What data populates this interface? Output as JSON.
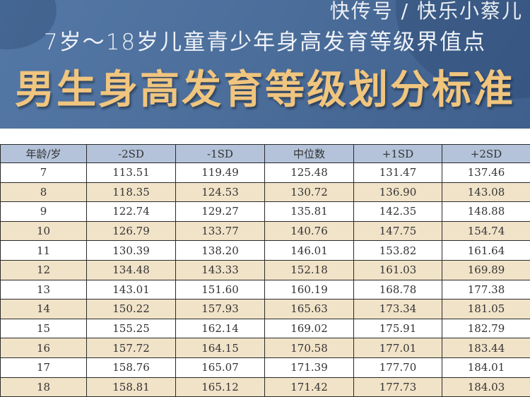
{
  "header": {
    "subtitle": "7岁～18岁儿童青少年身高发育等级界值点",
    "title": "男生身高发育等级划分标准"
  },
  "colors": {
    "banner": "#4b6d9a",
    "title": "#f0c57e",
    "table_header": "#b4c3da",
    "stripe": "#f1e3c8"
  },
  "table": {
    "columns": [
      "年龄/岁",
      "-2SD",
      "-1SD",
      "中位数",
      "+1SD",
      "+2SD"
    ],
    "rows": [
      [
        "7",
        "113.51",
        "119.49",
        "125.48",
        "131.47",
        "137.46"
      ],
      [
        "8",
        "118.35",
        "124.53",
        "130.72",
        "136.90",
        "143.08"
      ],
      [
        "9",
        "122.74",
        "129.27",
        "135.81",
        "142.35",
        "148.88"
      ],
      [
        "10",
        "126.79",
        "133.77",
        "140.76",
        "147.75",
        "154.74"
      ],
      [
        "11",
        "130.39",
        "138.20",
        "146.01",
        "153.82",
        "161.64"
      ],
      [
        "12",
        "134.48",
        "143.33",
        "152.18",
        "161.03",
        "169.89"
      ],
      [
        "13",
        "143.01",
        "151.60",
        "160.19",
        "168.78",
        "177.38"
      ],
      [
        "14",
        "150.22",
        "157.93",
        "165.63",
        "173.34",
        "181.05"
      ],
      [
        "15",
        "155.25",
        "162.14",
        "169.02",
        "175.91",
        "182.79"
      ],
      [
        "16",
        "157.72",
        "164.15",
        "170.58",
        "177.01",
        "183.44"
      ],
      [
        "17",
        "158.76",
        "165.07",
        "171.39",
        "177.70",
        "184.01"
      ],
      [
        "18",
        "158.81",
        "165.12",
        "171.42",
        "177.73",
        "184.03"
      ]
    ]
  },
  "watermark": "快传号 / 快乐小蔡儿"
}
